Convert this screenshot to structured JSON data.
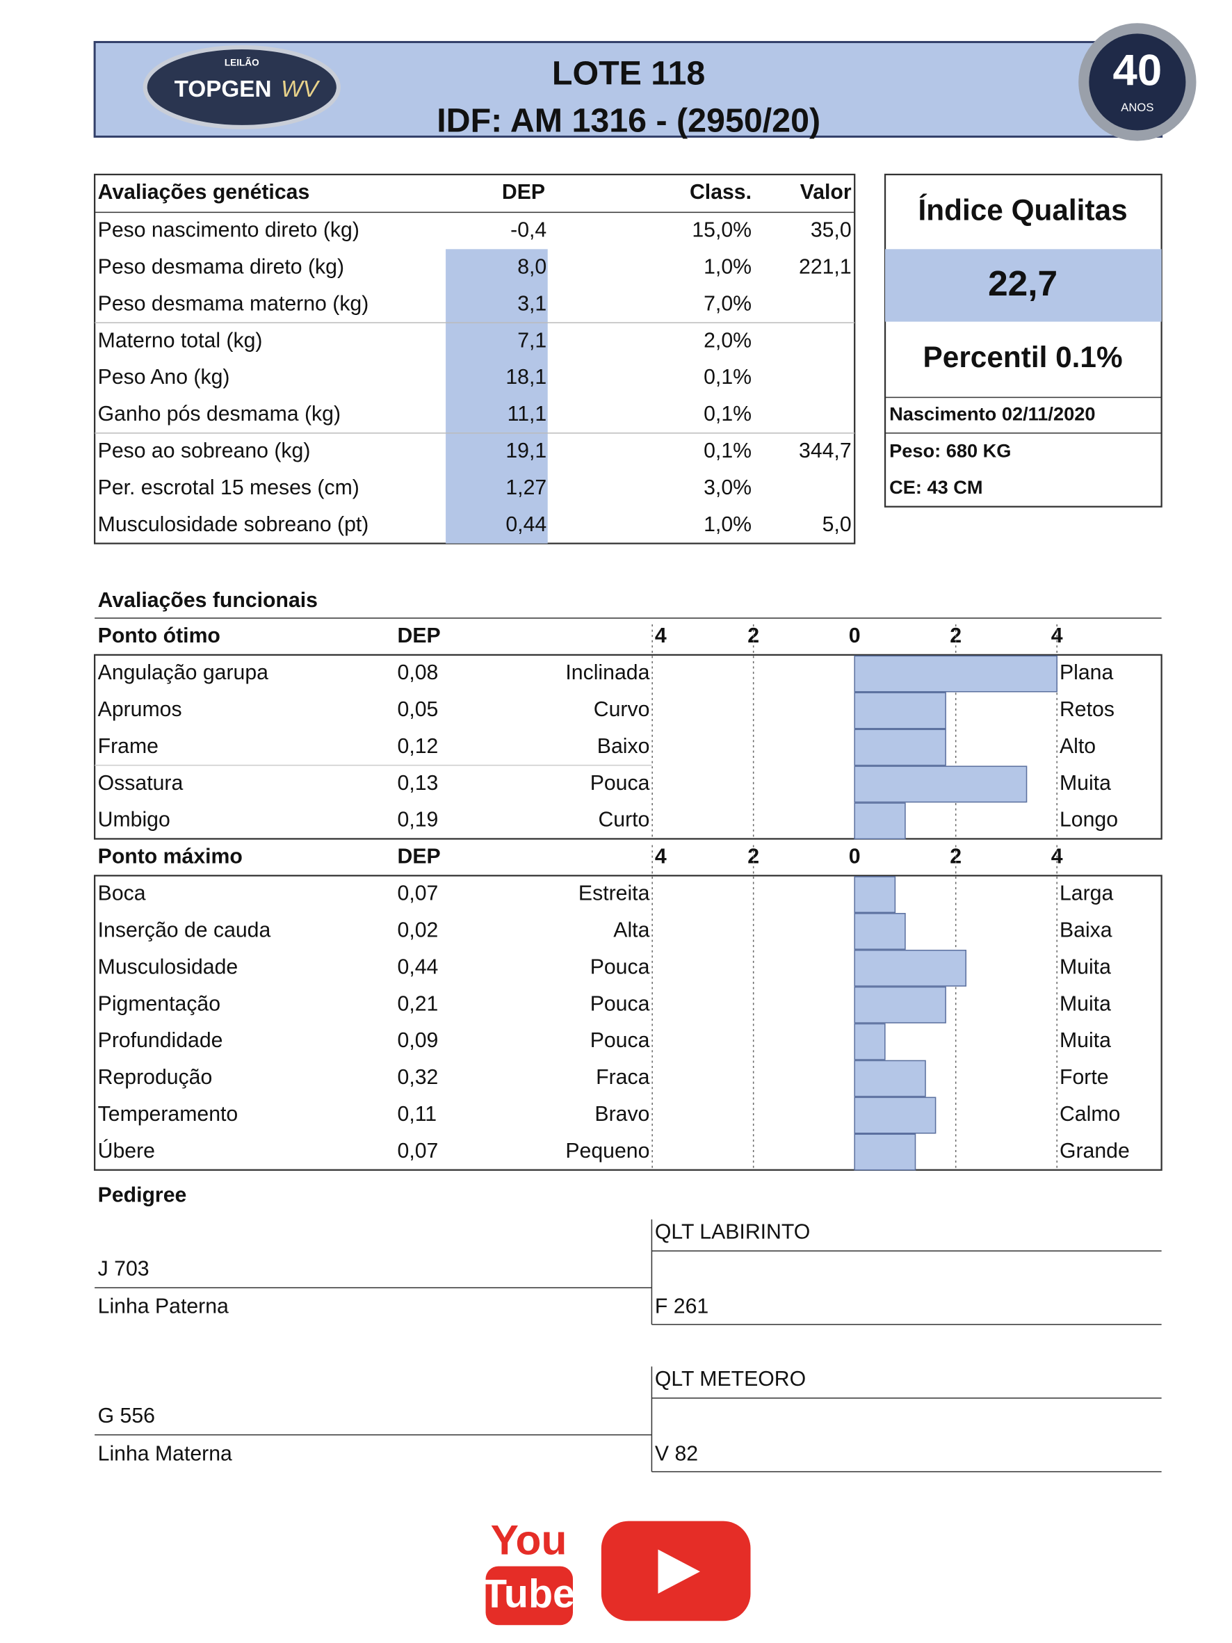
{
  "header": {
    "logo_small": "LEILÃO",
    "logo_text": "TOPGEN",
    "logo_suffix": "WV",
    "title": "LOTE 118",
    "subtitle": "IDF: AM 1316 - (2950/20)",
    "badge_number": "40",
    "badge_label": "ANOS"
  },
  "genetics": {
    "columns": [
      "Avaliações genéticas",
      "DEP",
      "Class.",
      "Valor"
    ],
    "rows": [
      [
        "Peso nascimento direto (kg)",
        "-0,4",
        "15,0%",
        "35,0"
      ],
      [
        "Peso desmama direto (kg)",
        "8,0",
        "1,0%",
        "221,1"
      ],
      [
        "Peso desmama materno (kg)",
        "3,1",
        "7,0%",
        null
      ],
      [
        "Materno total (kg)",
        "7,1",
        "2,0%",
        null
      ],
      [
        "Peso Ano (kg)",
        "18,1",
        "0,1%",
        null
      ],
      [
        "Ganho pós desmama (kg)",
        "11,1",
        "0,1%",
        null
      ],
      [
        "Peso ao sobreano (kg)",
        "19,1",
        "0,1%",
        "344,7"
      ],
      [
        "Per. escrotal 15 meses (cm)",
        "1,27",
        "3,0%",
        null
      ],
      [
        "Musculosidade sobreano (pt)",
        "0,44",
        "1,0%",
        "5,0"
      ]
    ]
  },
  "index": {
    "title": "Índice Qualitas",
    "value": "22,7",
    "percentile": "Percentil 0.1%",
    "birth": "Nascimento 02/11/2020",
    "weight": "Peso: 680 KG",
    "ce": "CE: 43 CM"
  },
  "functional": {
    "title": "Avaliações funcionais",
    "xlim": [
      -4,
      4
    ],
    "xticks": [
      {
        "value": -4,
        "label": "4"
      },
      {
        "value": -2,
        "label": "2"
      },
      0,
      2,
      4
    ],
    "bar_color": "#b4c6e7",
    "groups": [
      {
        "header": "Ponto ótimo",
        "dep_header": "DEP",
        "rows": [
          {
            "trait": "Angulação garupa",
            "dep": "0,08",
            "low": "Inclinada",
            "high": "Plana",
            "score": 4.0
          },
          {
            "trait": "Aprumos",
            "dep": "0,05",
            "low": "Curvo",
            "high": "Retos",
            "score": 1.8
          },
          {
            "trait": "Frame",
            "dep": "0,12",
            "low": "Baixo",
            "high": "Alto",
            "score": 1.8
          },
          {
            "trait": "Ossatura",
            "dep": "0,13",
            "low": "Pouca",
            "high": "Muita",
            "score": 3.4
          },
          {
            "trait": "Umbigo",
            "dep": "0,19",
            "low": "Curto",
            "high": "Longo",
            "score": 1.0
          }
        ]
      },
      {
        "header": "Ponto máximo",
        "dep_header": "DEP",
        "rows": [
          {
            "trait": "Boca",
            "dep": "0,07",
            "low": "Estreita",
            "high": "Larga",
            "score": 0.8
          },
          {
            "trait": "Inserção de cauda",
            "dep": "0,02",
            "low": "Alta",
            "high": "Baixa",
            "score": 1.0
          },
          {
            "trait": "Musculosidade",
            "dep": "0,44",
            "low": "Pouca",
            "high": "Muita",
            "score": 2.2
          },
          {
            "trait": "Pigmentação",
            "dep": "0,21",
            "low": "Pouca",
            "high": "Muita",
            "score": 1.8
          },
          {
            "trait": "Profundidade",
            "dep": "0,09",
            "low": "Pouca",
            "high": "Muita",
            "score": 0.6
          },
          {
            "trait": "Reprodução",
            "dep": "0,32",
            "low": "Fraca",
            "high": "Forte",
            "score": 1.4
          },
          {
            "trait": "Temperamento",
            "dep": "0,11",
            "low": "Bravo",
            "high": "Calmo",
            "score": 1.6
          },
          {
            "trait": "Úbere",
            "dep": "0,07",
            "low": "Pequeno",
            "high": "Grande",
            "score": 1.2
          }
        ]
      }
    ]
  },
  "pedigree": {
    "title": "Pedigree",
    "sire": "J 703",
    "sire_label": "Linha Paterna",
    "sire_sire": "QLT LABIRINTO",
    "sire_dam": "F 261",
    "dam": "G 556",
    "dam_label": "Linha Materna",
    "dam_sire": "QLT METEORO",
    "dam_dam": "V 82"
  },
  "footer": {
    "youtube_top": "You",
    "youtube_bottom": "Tube"
  }
}
